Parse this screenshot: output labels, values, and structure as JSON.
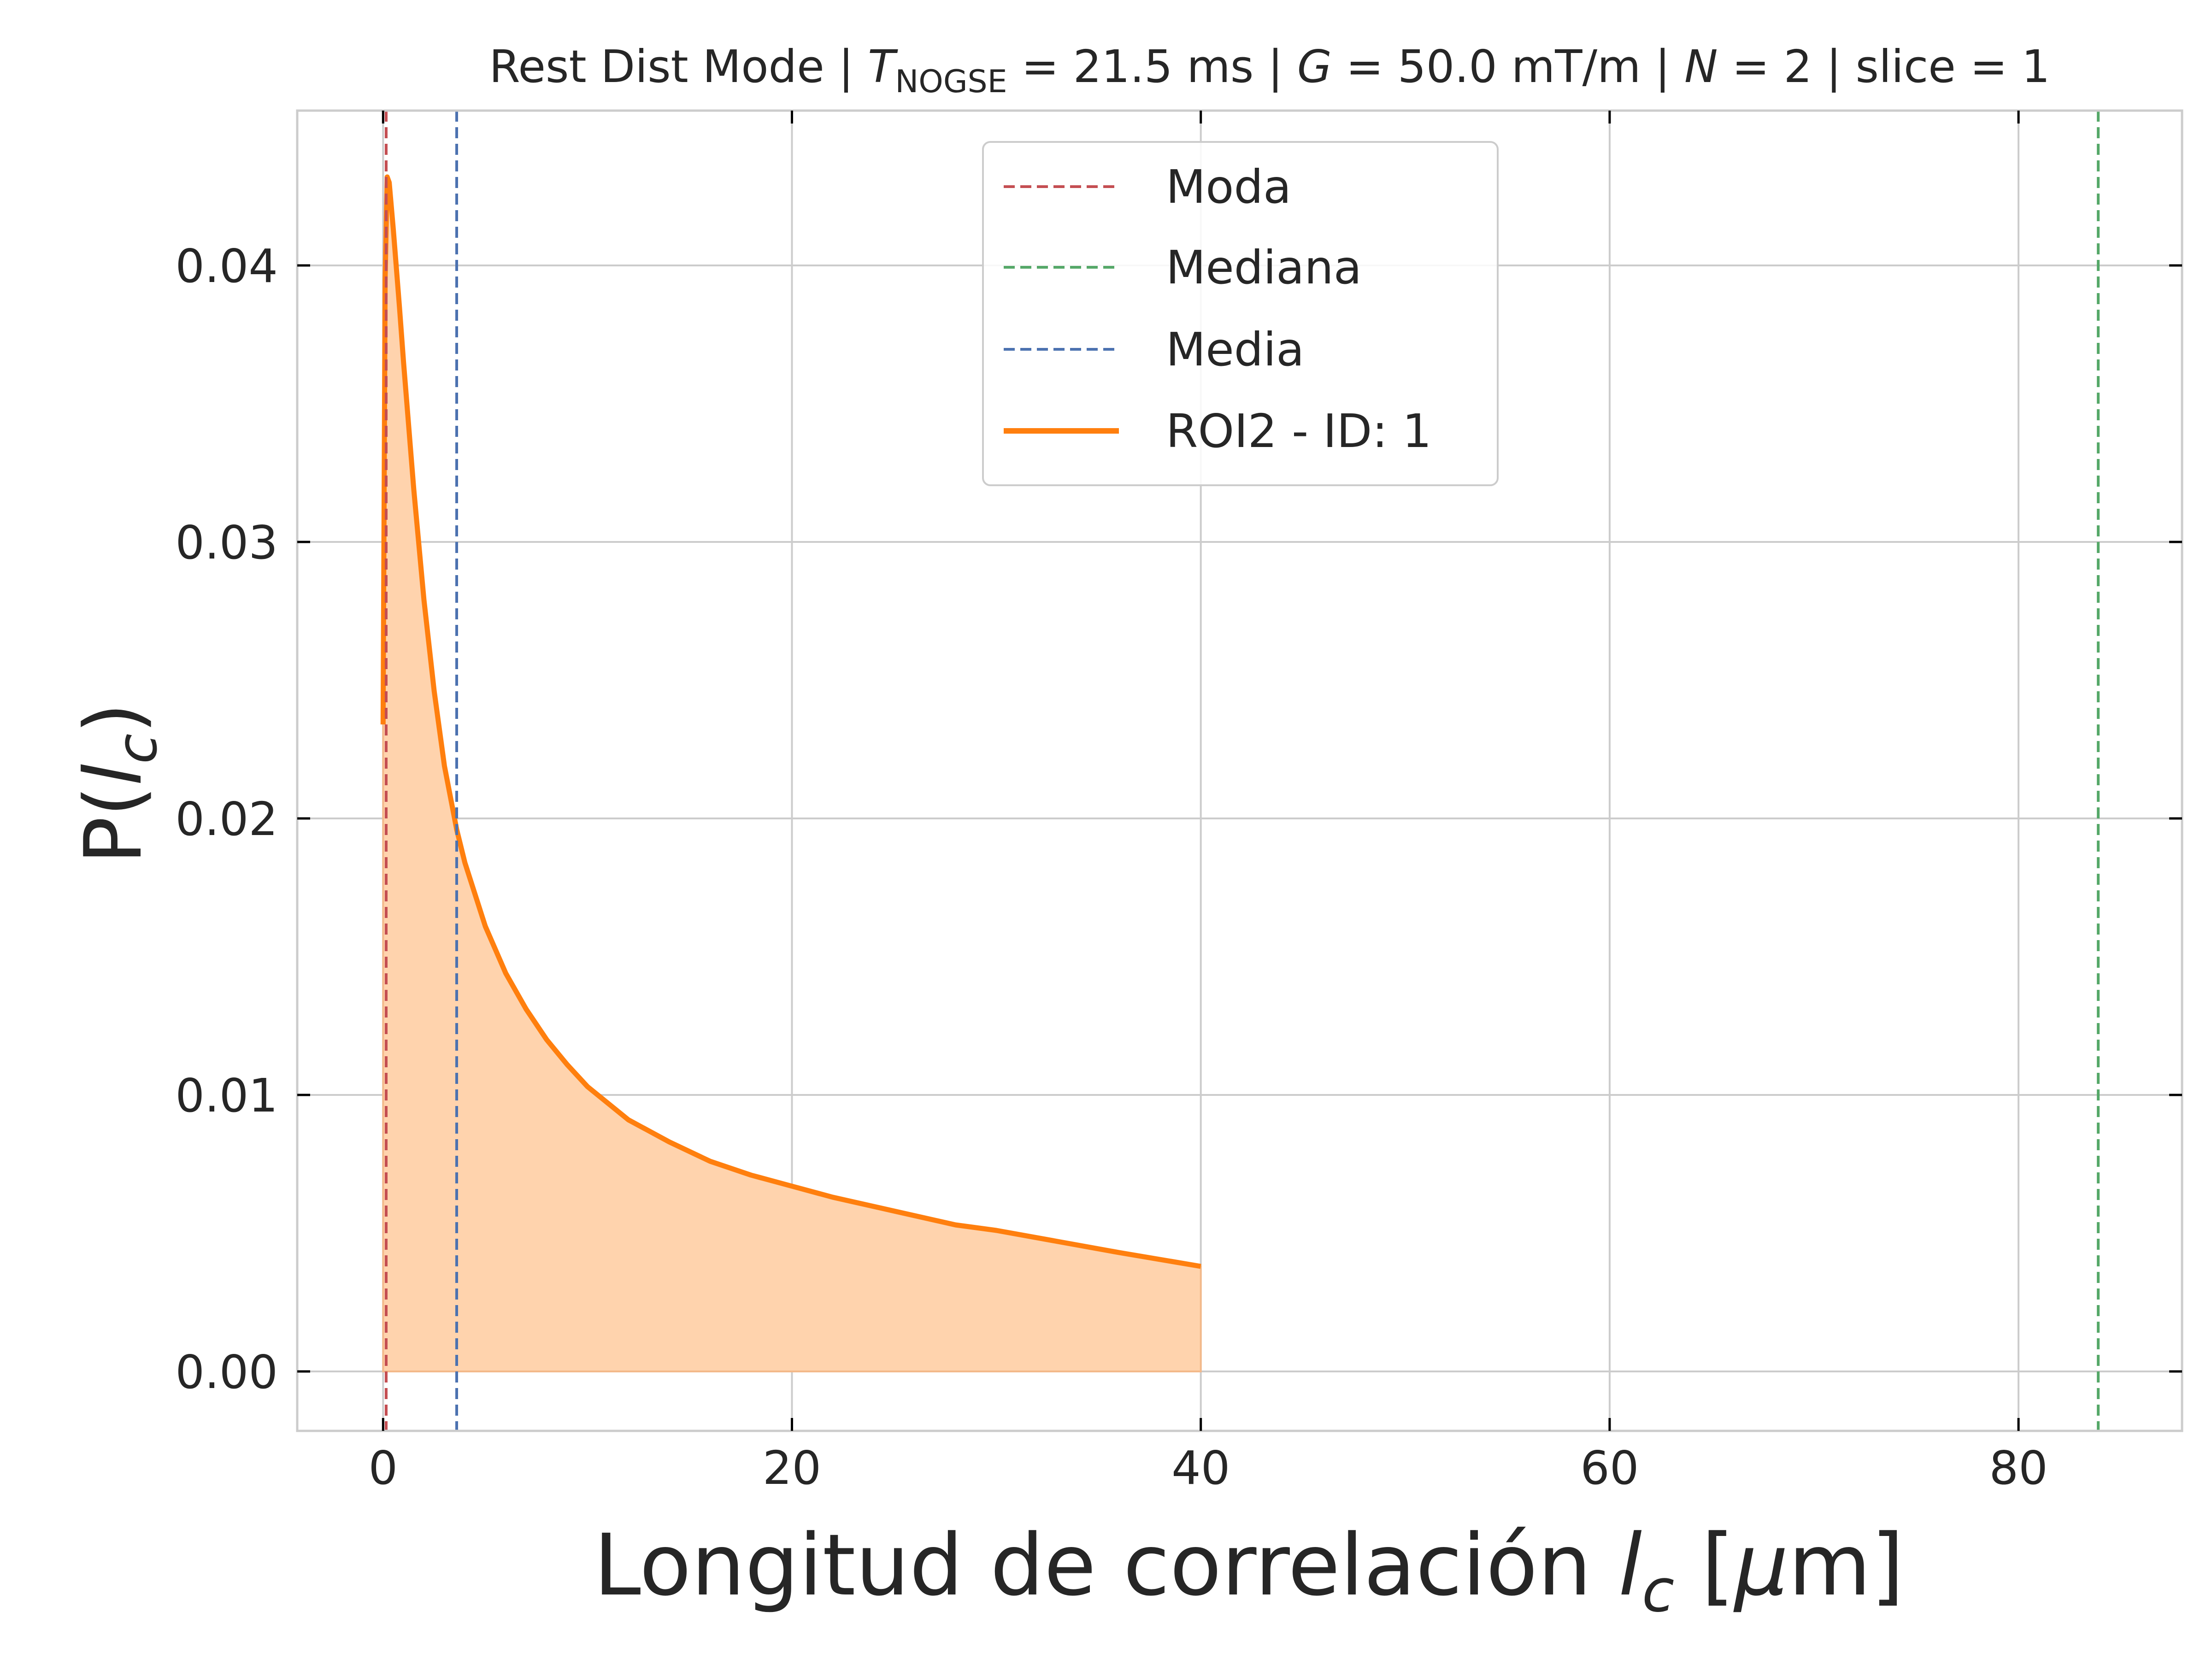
{
  "chart_data": {
    "type": "line",
    "title_parts": {
      "prefix": "Rest Dist Mode | ",
      "t_symbol": "T",
      "t_subscript": "NOGSE",
      "t_value": " = 21.5 ms | ",
      "g_symbol": "G",
      "g_value": " = 50.0 mT/m | ",
      "n_symbol": "N",
      "n_value": " = 2 | slice = 1"
    },
    "xlabel_parts": {
      "text": "Longitud de correlación ",
      "symbol": "l",
      "subscript": "c",
      "unit_open": " [",
      "unit_symbol": "μ",
      "unit_close": "m]"
    },
    "ylabel_parts": {
      "prefix": "P(",
      "symbol": "l",
      "subscript": "c",
      "suffix": ")"
    },
    "xlim": [
      -4.2,
      88.0
    ],
    "ylim": [
      -0.00215,
      0.0456
    ],
    "xticks": [
      0,
      20,
      40,
      60,
      80
    ],
    "xtick_labels": [
      "0",
      "20",
      "40",
      "60",
      "80"
    ],
    "yticks": [
      0.0,
      0.01,
      0.02,
      0.03,
      0.04
    ],
    "ytick_labels": [
      "0.00",
      "0.01",
      "0.02",
      "0.03",
      "0.04"
    ],
    "grid": true,
    "legend_position": "upper center",
    "vlines": [
      {
        "name": "Moda",
        "x": 0.15,
        "color": "#c44e52"
      },
      {
        "name": "Mediana",
        "x": 83.9,
        "color": "#55a868"
      },
      {
        "name": "Media",
        "x": 3.6,
        "color": "#4c72b0"
      }
    ],
    "series": [
      {
        "name": "ROI2 - ID: 1",
        "color": "#ff7f0e",
        "fill_color": "#ffd3ad",
        "x": [
          0,
          0.1,
          0.2,
          0.3,
          0.5,
          0.8,
          1.0,
          1.5,
          2.0,
          2.5,
          3.0,
          3.6,
          4.0,
          5.0,
          6.0,
          7.0,
          8.0,
          9.0,
          10.0,
          12.0,
          14.0,
          16.0,
          18.0,
          20.0,
          22.0,
          25.0,
          28.0,
          30.0,
          33.0,
          36.0,
          40.0
        ],
        "y": [
          0.0234,
          0.0395,
          0.0432,
          0.043,
          0.0413,
          0.0385,
          0.0365,
          0.0319,
          0.0279,
          0.0246,
          0.0219,
          0.0196,
          0.0184,
          0.0161,
          0.0144,
          0.0131,
          0.012,
          0.0111,
          0.0103,
          0.0091,
          0.0083,
          0.0076,
          0.0071,
          0.0067,
          0.0063,
          0.0058,
          0.0053,
          0.0051,
          0.0047,
          0.0043,
          0.0038
        ]
      }
    ]
  }
}
